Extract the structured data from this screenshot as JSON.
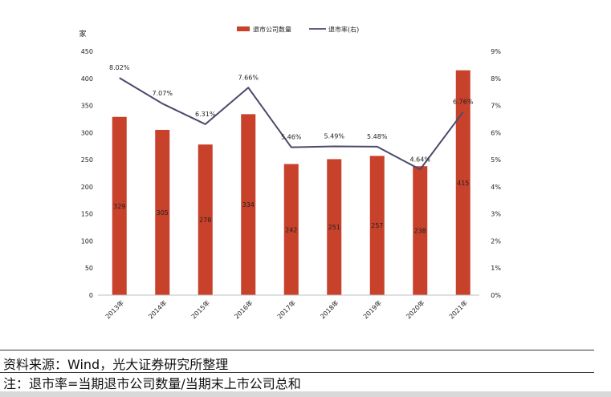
{
  "chart_data": {
    "type": "bar",
    "categories": [
      "2013年",
      "2014年",
      "2015年",
      "2016年",
      "2017年",
      "2018年",
      "2019年",
      "2020年",
      "2021年"
    ],
    "series": [
      {
        "name": "退市公司数量",
        "type": "bar",
        "axis": "left",
        "values": [
          329,
          305,
          278,
          334,
          242,
          251,
          257,
          238,
          415
        ],
        "labels": [
          "329",
          "305",
          "278",
          "334",
          "242",
          "251",
          "257",
          "238",
          "415"
        ],
        "color": "#c8412a"
      },
      {
        "name": "退市率(右)",
        "type": "line",
        "axis": "right",
        "values": [
          8.02,
          7.07,
          6.31,
          7.66,
          5.46,
          5.49,
          5.48,
          4.64,
          6.76
        ],
        "labels": [
          "8.02%",
          "7.07%",
          "6.31%",
          "7.66%",
          "5.46%",
          "5.49%",
          "5.48%",
          "4.64%",
          "6.76%"
        ],
        "color": "#4a4a6e"
      }
    ],
    "left_axis": {
      "unit": "家",
      "ylim": [
        0,
        450
      ],
      "ticks": [
        "0",
        "50",
        "100",
        "150",
        "200",
        "250",
        "300",
        "350",
        "400",
        "450"
      ]
    },
    "right_axis": {
      "ylim": [
        0,
        9
      ],
      "ticks": [
        "0%",
        "1%",
        "2%",
        "3%",
        "4%",
        "5%",
        "6%",
        "7%",
        "8%",
        "9%"
      ]
    },
    "legend_position": "top-center",
    "grid": false
  },
  "footer": {
    "source": "资料来源：Wind，光大证券研究所整理",
    "note": "注：退市率=当期退市公司数量/当期末上市公司总和"
  }
}
